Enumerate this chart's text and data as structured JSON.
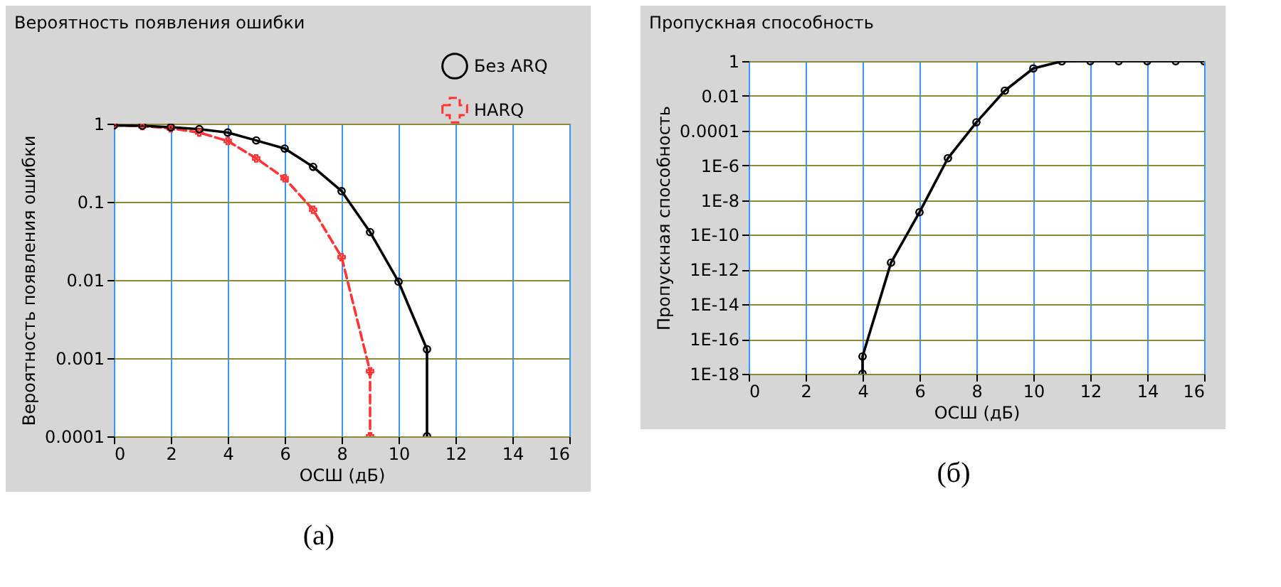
{
  "chart_data": [
    {
      "type": "line",
      "title": "Вероятность появления ошибки",
      "xlabel": "ОСШ (дБ)",
      "ylabel": "Вероятность появления ошибки",
      "log": true,
      "grid": true,
      "legend": "top right",
      "xlim": [
        0,
        16
      ],
      "xticks": [
        0,
        2,
        4,
        6,
        8,
        10,
        12,
        14,
        16
      ],
      "ylim": [
        0.0001,
        1
      ],
      "yticks": [
        0.0001,
        0.001,
        0.01,
        0.1,
        1
      ],
      "annotations": [
        "(а)"
      ],
      "series": [
        {
          "name": "Без ARQ",
          "color": "#000000",
          "line_style": "solid",
          "marker": "circle",
          "x": [
            0,
            1,
            2,
            3,
            4,
            5,
            6,
            7,
            8,
            9,
            10,
            11,
            11
          ],
          "values": [
            0.95,
            0.94,
            0.9,
            0.85,
            0.77,
            0.61,
            0.48,
            0.28,
            0.137,
            0.041,
            0.0095,
            0.0013,
            0.0001
          ]
        },
        {
          "name": "HARQ",
          "color": "#ff3333",
          "line_style": "dashed",
          "marker": "cross",
          "x": [
            0,
            1,
            2,
            3,
            4,
            5,
            6,
            7,
            8,
            9,
            9
          ],
          "values": [
            0.95,
            0.93,
            0.87,
            0.77,
            0.6,
            0.36,
            0.2,
            0.079,
            0.0196,
            0.00068,
            0.0001
          ]
        }
      ]
    },
    {
      "type": "line",
      "title": "Пропускная способность",
      "xlabel": "ОСШ (дБ)",
      "ylabel": "Пропускная способность",
      "log": true,
      "grid": true,
      "xlim": [
        0,
        16
      ],
      "xticks": [
        0,
        2,
        4,
        6,
        8,
        10,
        12,
        14,
        16
      ],
      "ylim": [
        1e-18,
        1
      ],
      "yticks": [
        {
          "value": 1e-18,
          "label": "1E-18"
        },
        {
          "value": 1e-16,
          "label": "1E-16"
        },
        {
          "value": 1e-14,
          "label": "1E-14"
        },
        {
          "value": 1e-12,
          "label": "1E-12"
        },
        {
          "value": 1e-10,
          "label": "1E-10"
        },
        {
          "value": 1e-08,
          "label": "1E-8"
        },
        {
          "value": 1e-06,
          "label": "1E-6"
        },
        0.0001,
        0.01,
        1
      ],
      "annotations": [
        "(б)"
      ],
      "series": [
        {
          "color": "#000000",
          "line_style": "solid",
          "marker": "circle",
          "x": [
            4,
            4,
            5,
            6,
            7,
            8,
            9,
            10,
            11,
            12,
            13,
            14,
            15,
            16
          ],
          "values": [
            1e-18,
            1e-17,
            2.5e-12,
            2e-09,
            2.6e-06,
            0.0003,
            0.02,
            0.38,
            0.98,
            1,
            1,
            1,
            1,
            1
          ]
        }
      ]
    }
  ]
}
